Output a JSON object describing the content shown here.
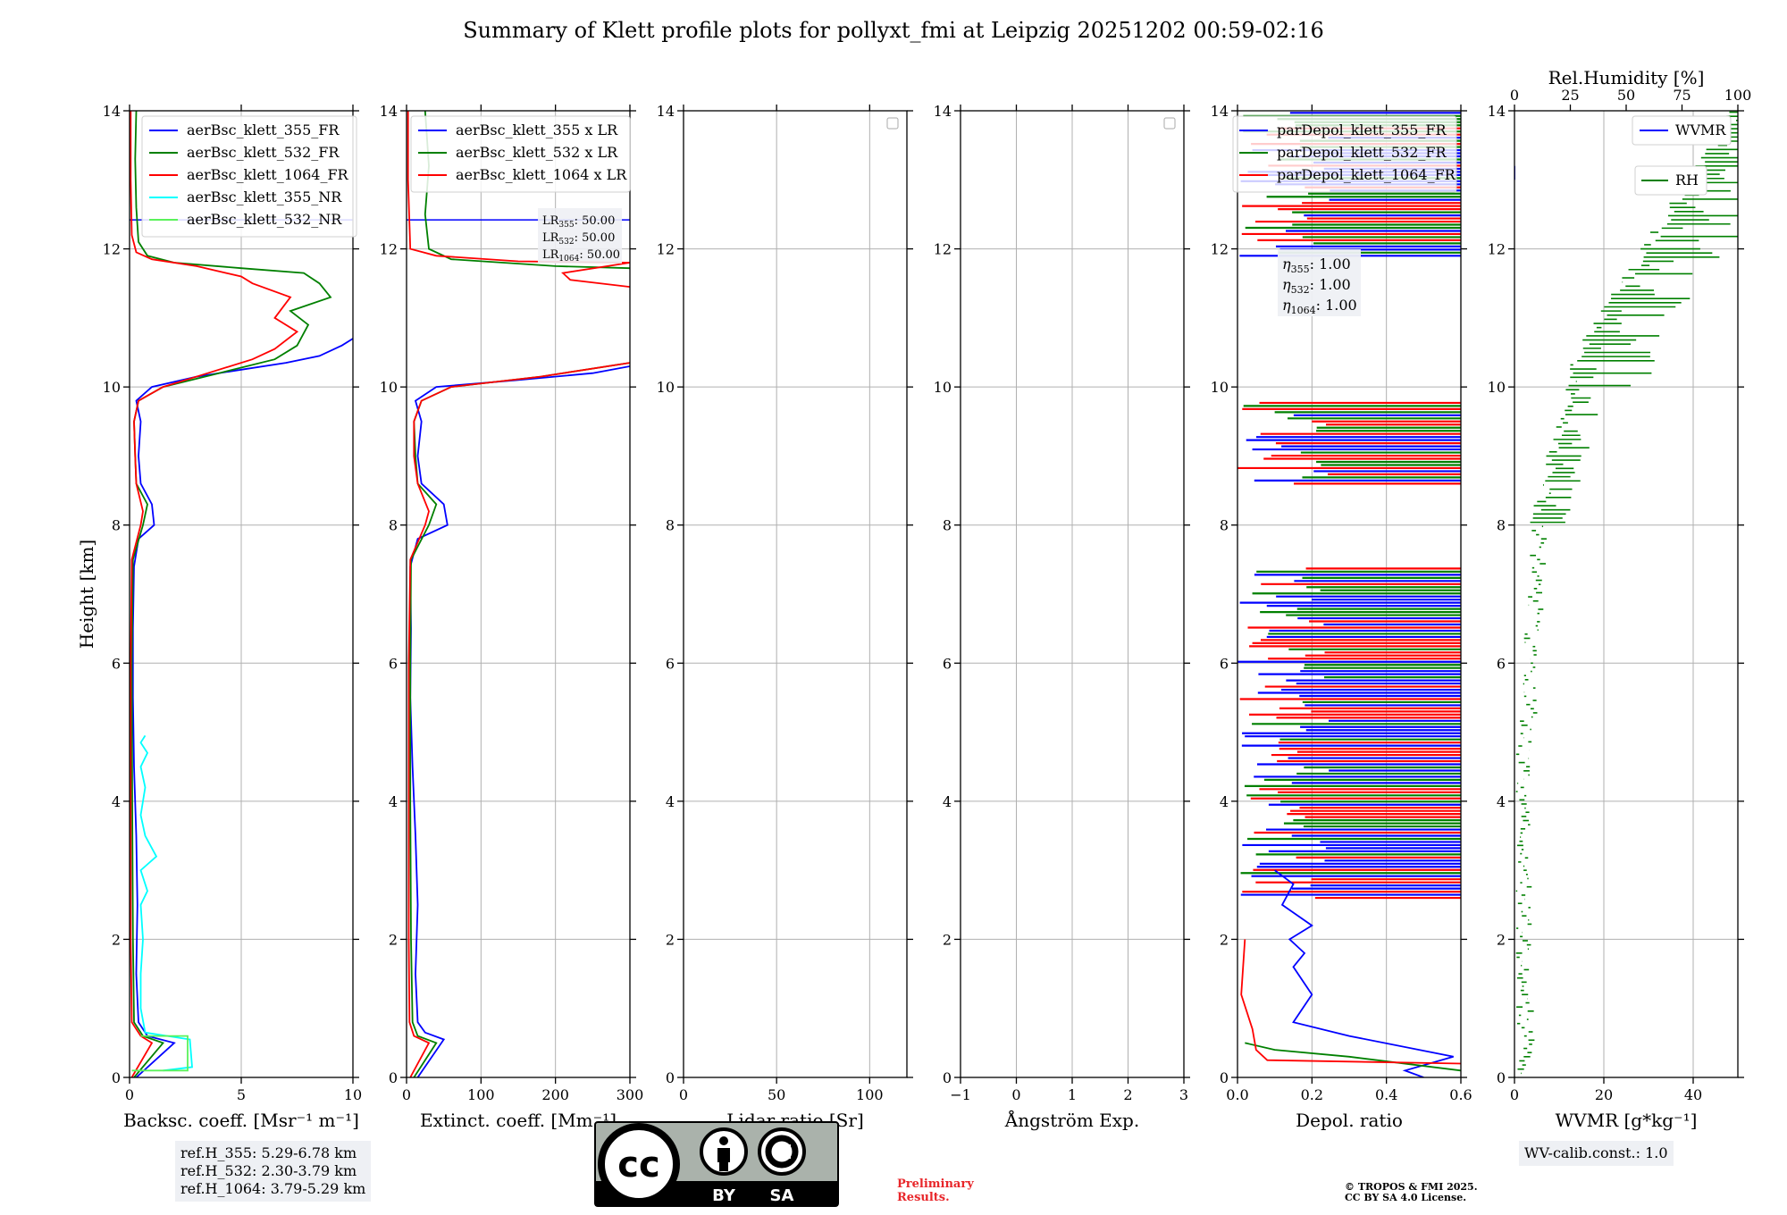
{
  "figure": {
    "title": "Summary of Klett profile plots for pollyxt_fmi at Leipzig 20251202 00:59-02:16",
    "ylabel": "Height [km]",
    "preliminary": [
      "Preliminary",
      "Results."
    ],
    "copyright": [
      "© TROPOS & FMI 2025.",
      "CC BY SA 4.0 License."
    ],
    "license_badge": {
      "by": "BY",
      "sa": "SA",
      "cc": "cc"
    },
    "colors": {
      "blue": "#0000ff",
      "green": "#008000",
      "red": "#ff0000",
      "cyan": "#00ffff",
      "lightgreen": "#5af25a"
    }
  },
  "chart_data": [
    {
      "type": "line",
      "id": "bsc",
      "xlabel": "Backsc. coeff. [Msr⁻¹ m⁻¹]",
      "ylabel": "Height [km]",
      "xlim": [
        0,
        10
      ],
      "ylim": [
        0,
        14
      ],
      "xticks": [
        0,
        5,
        10
      ],
      "yticks": [
        0,
        2,
        4,
        6,
        8,
        10,
        12,
        14
      ],
      "grid": true,
      "legend_position": "top-right",
      "hline": {
        "y": 12.42,
        "color": "#0000ff"
      },
      "series": [
        {
          "name": "aerBsc_klett_355_FR",
          "color": "#0000ff",
          "points": [
            [
              0.3,
              0
            ],
            [
              2.0,
              0.5
            ],
            [
              0.8,
              0.6
            ],
            [
              0.4,
              0.8
            ],
            [
              0.3,
              1.5
            ],
            [
              0.35,
              2.5
            ],
            [
              0.3,
              3.5
            ],
            [
              0.2,
              4.5
            ],
            [
              0.15,
              5.5
            ],
            [
              0.15,
              6.5
            ],
            [
              0.2,
              7.4
            ],
            [
              0.4,
              7.8
            ],
            [
              1.1,
              8.0
            ],
            [
              1.0,
              8.3
            ],
            [
              0.5,
              8.6
            ],
            [
              0.4,
              9.0
            ],
            [
              0.5,
              9.5
            ],
            [
              0.3,
              9.8
            ],
            [
              1.0,
              10.0
            ],
            [
              3.0,
              10.15
            ],
            [
              5.0,
              10.25
            ],
            [
              7.0,
              10.35
            ],
            [
              8.5,
              10.45
            ],
            [
              9.5,
              10.6
            ],
            [
              10,
              10.7
            ]
          ]
        },
        {
          "name": "aerBsc_klett_532_FR",
          "color": "#008000",
          "points": [
            [
              0.2,
              0
            ],
            [
              1.5,
              0.5
            ],
            [
              0.6,
              0.6
            ],
            [
              0.2,
              0.8
            ],
            [
              0.15,
              2
            ],
            [
              0.12,
              4
            ],
            [
              0.1,
              6
            ],
            [
              0.15,
              7.5
            ],
            [
              0.6,
              8.0
            ],
            [
              0.8,
              8.3
            ],
            [
              0.3,
              8.6
            ],
            [
              0.25,
              9.0
            ],
            [
              0.2,
              9.5
            ],
            [
              0.4,
              9.8
            ],
            [
              1.5,
              10.0
            ],
            [
              4.0,
              10.2
            ],
            [
              6.5,
              10.4
            ],
            [
              7.5,
              10.6
            ],
            [
              8.0,
              10.9
            ],
            [
              7.2,
              11.1
            ],
            [
              9.0,
              11.3
            ],
            [
              8.5,
              11.5
            ],
            [
              7.8,
              11.65
            ],
            [
              5.0,
              11.72
            ],
            [
              2.0,
              11.8
            ],
            [
              0.8,
              11.9
            ],
            [
              0.4,
              12.1
            ],
            [
              0.3,
              12.6
            ],
            [
              0.25,
              13.3
            ],
            [
              0.3,
              14
            ]
          ]
        },
        {
          "name": "aerBsc_klett_1064_FR",
          "color": "#ff0000",
          "points": [
            [
              0.1,
              0
            ],
            [
              1.0,
              0.5
            ],
            [
              0.5,
              0.6
            ],
            [
              0.1,
              0.8
            ],
            [
              0.05,
              2
            ],
            [
              0.05,
              4
            ],
            [
              0.05,
              6
            ],
            [
              0.1,
              7.5
            ],
            [
              0.5,
              8.0
            ],
            [
              0.6,
              8.2
            ],
            [
              0.3,
              8.6
            ],
            [
              0.25,
              9.0
            ],
            [
              0.2,
              9.5
            ],
            [
              0.4,
              9.8
            ],
            [
              1.5,
              10.0
            ],
            [
              3.5,
              10.2
            ],
            [
              5.5,
              10.4
            ],
            [
              6.5,
              10.55
            ],
            [
              7.5,
              10.8
            ],
            [
              6.5,
              11.0
            ],
            [
              7.2,
              11.3
            ],
            [
              5.5,
              11.5
            ],
            [
              5.0,
              11.6
            ],
            [
              3.0,
              11.75
            ],
            [
              1.0,
              11.85
            ],
            [
              0.3,
              11.95
            ],
            [
              0.1,
              12.2
            ],
            [
              0.05,
              13
            ],
            [
              0.05,
              14
            ]
          ]
        },
        {
          "name": "aerBsc_klett_355_NR",
          "color": "#00ffff",
          "points": [
            [
              1.5,
              0.1
            ],
            [
              2.8,
              0.15
            ],
            [
              2.7,
              0.55
            ],
            [
              0.7,
              0.65
            ],
            [
              0.5,
              1.0
            ],
            [
              0.5,
              1.5
            ],
            [
              0.6,
              2.0
            ],
            [
              0.5,
              2.5
            ],
            [
              0.8,
              2.7
            ],
            [
              0.5,
              3.0
            ],
            [
              1.2,
              3.2
            ],
            [
              0.7,
              3.5
            ],
            [
              0.5,
              3.8
            ],
            [
              0.7,
              4.2
            ],
            [
              0.5,
              4.5
            ],
            [
              0.8,
              4.7
            ],
            [
              0.5,
              4.85
            ],
            [
              0.7,
              4.95
            ]
          ]
        },
        {
          "name": "aerBsc_klett_532_NR",
          "color": "#5af25a",
          "points": [
            [
              0.1,
              0.1
            ],
            [
              2.6,
              0.1
            ],
            [
              2.6,
              0.6
            ],
            [
              0.5,
              0.6
            ]
          ]
        }
      ],
      "annotation": [
        "ref.H_355: 5.29-6.78 km",
        "ref.H_532: 2.30-3.79 km",
        "ref.H_1064: 3.79-5.29 km"
      ]
    },
    {
      "type": "line",
      "id": "ext",
      "xlabel": "Extinct. coeff. [Mm⁻¹]",
      "xlim": [
        0,
        300
      ],
      "ylim": [
        0,
        14
      ],
      "xticks": [
        0,
        100,
        200,
        300
      ],
      "yticks": [
        0,
        2,
        4,
        6,
        8,
        10,
        12,
        14
      ],
      "grid": true,
      "legend_position": "top-left",
      "hline": {
        "y": 12.42,
        "color": "#0000ff"
      },
      "series": [
        {
          "name": "aerBsc_klett_355 x LR",
          "color": "#0000ff",
          "points": [
            [
              15,
              0
            ],
            [
              50,
              0.55
            ],
            [
              25,
              0.65
            ],
            [
              15,
              0.8
            ],
            [
              12,
              1.5
            ],
            [
              15,
              2.5
            ],
            [
              12,
              3.5
            ],
            [
              8,
              4.5
            ],
            [
              5,
              5.5
            ],
            [
              6,
              6.5
            ],
            [
              5,
              7.4
            ],
            [
              15,
              7.8
            ],
            [
              55,
              8.0
            ],
            [
              50,
              8.3
            ],
            [
              20,
              8.6
            ],
            [
              15,
              9.0
            ],
            [
              20,
              9.5
            ],
            [
              12,
              9.8
            ],
            [
              40,
              10.0
            ],
            [
              150,
              10.1
            ],
            [
              250,
              10.2
            ],
            [
              300,
              10.3
            ]
          ]
        },
        {
          "name": "aerBsc_klett_532 x LR",
          "color": "#008000",
          "points": [
            [
              10,
              0
            ],
            [
              40,
              0.5
            ],
            [
              15,
              0.6
            ],
            [
              8,
              0.8
            ],
            [
              6,
              2
            ],
            [
              5,
              4
            ],
            [
              5,
              6
            ],
            [
              6,
              7.5
            ],
            [
              30,
              8.0
            ],
            [
              40,
              8.3
            ],
            [
              15,
              8.6
            ],
            [
              12,
              9.0
            ],
            [
              10,
              9.5
            ],
            [
              20,
              9.8
            ],
            [
              60,
              10.0
            ],
            [
              180,
              10.15
            ],
            [
              300,
              10.35
            ]
          ]
        },
        {
          "name": "aerBsc_klett_1064 x LR",
          "color": "#ff0000",
          "points": [
            [
              5,
              0
            ],
            [
              30,
              0.5
            ],
            [
              10,
              0.6
            ],
            [
              4,
              0.8
            ],
            [
              3,
              2
            ],
            [
              3,
              4
            ],
            [
              3,
              6
            ],
            [
              5,
              7.5
            ],
            [
              25,
              8.0
            ],
            [
              30,
              8.2
            ],
            [
              15,
              8.6
            ],
            [
              10,
              9.0
            ],
            [
              10,
              9.5
            ],
            [
              20,
              9.8
            ],
            [
              60,
              10.0
            ],
            [
              180,
              10.15
            ],
            [
              300,
              10.35
            ]
          ]
        }
      ],
      "extra_upper": [
        {
          "color": "#008000",
          "points": [
            [
              300,
              11.72
            ],
            [
              200,
              11.75
            ],
            [
              60,
              11.85
            ],
            [
              30,
              12.0
            ],
            [
              25,
              12.5
            ],
            [
              30,
              13.2
            ],
            [
              25,
              14
            ]
          ]
        },
        {
          "color": "#ff0000",
          "points": [
            [
              300,
              11.45
            ],
            [
              220,
              11.55
            ],
            [
              210,
              11.65
            ],
            [
              300,
              11.8
            ],
            [
              150,
              11.82
            ],
            [
              40,
              11.9
            ],
            [
              5,
              12.0
            ],
            [
              2,
              13
            ],
            [
              2,
              14
            ]
          ]
        }
      ],
      "annotation": [
        "LR355: 50.00",
        "LR532: 50.00",
        "LR1064: 50.00"
      ]
    },
    {
      "type": "line",
      "id": "lr",
      "xlabel": "Lidar ratio [Sr]",
      "xlim": [
        0,
        120
      ],
      "ylim": [
        0,
        14
      ],
      "xticks": [
        0,
        50,
        100
      ],
      "yticks": [
        0,
        2,
        4,
        6,
        8,
        10,
        12,
        14
      ],
      "grid": true,
      "series": []
    },
    {
      "type": "line",
      "id": "ang",
      "xlabel": "Ångström Exp.",
      "xlim": [
        -1,
        3
      ],
      "ylim": [
        0,
        14
      ],
      "xticks": [
        -1,
        0,
        1,
        2,
        3
      ],
      "yticks": [
        0,
        2,
        4,
        6,
        8,
        10,
        12,
        14
      ],
      "grid": true,
      "series": []
    },
    {
      "type": "line",
      "id": "depol",
      "xlabel": "Depol. ratio",
      "xlim": [
        0,
        0.6
      ],
      "ylim": [
        0,
        14
      ],
      "xticks": [
        0.0,
        0.2,
        0.4,
        0.6
      ],
      "xticklabels": [
        "0.0",
        "0.2",
        "0.4",
        "0.6"
      ],
      "yticks": [
        0,
        2,
        4,
        6,
        8,
        10,
        12,
        14
      ],
      "grid": true,
      "legend_position": "top-left",
      "series": [
        {
          "name": "parDepol_klett_355_FR",
          "color": "#0000ff",
          "points": [
            [
              0.5,
              0
            ],
            [
              0.45,
              0.1
            ],
            [
              0.58,
              0.3
            ],
            [
              0.3,
              0.6
            ],
            [
              0.15,
              0.8
            ],
            [
              0.2,
              1.2
            ],
            [
              0.15,
              1.6
            ],
            [
              0.18,
              1.8
            ],
            [
              0.14,
              2.0
            ],
            [
              0.2,
              2.2
            ],
            [
              0.12,
              2.5
            ],
            [
              0.15,
              2.8
            ],
            [
              0.1,
              3.0
            ]
          ]
        },
        {
          "name": "parDepol_klett_532_FR",
          "color": "#008000",
          "points": [
            [
              0.6,
              0.1
            ],
            [
              0.3,
              0.3
            ],
            [
              0.1,
              0.4
            ],
            [
              0.02,
              0.5
            ]
          ]
        },
        {
          "name": "parDepol_klett_1064_FR",
          "color": "#ff0000",
          "points": [
            [
              0.6,
              0.2
            ],
            [
              0.08,
              0.25
            ],
            [
              0.05,
              0.4
            ],
            [
              0.04,
              0.7
            ],
            [
              0.01,
              1.2
            ],
            [
              0.02,
              2.0
            ]
          ]
        }
      ],
      "noise_bands": [
        [
          2.6,
          7.4
        ],
        [
          8.6,
          9.8
        ],
        [
          11.9,
          14
        ]
      ],
      "annotation": [
        "η355: 1.00",
        "η532: 1.00",
        "η1064: 1.00"
      ]
    },
    {
      "type": "line",
      "id": "wv",
      "xlabel": "WVMR [g*kg⁻¹]",
      "top_xlabel": "Rel.Humidity [%]",
      "xlim": [
        0,
        50
      ],
      "ylim": [
        0,
        14
      ],
      "xticks": [
        0,
        20,
        40
      ],
      "top_xticks": [
        0,
        25,
        50,
        75,
        100
      ],
      "yticks": [
        0,
        2,
        4,
        6,
        8,
        10,
        12,
        14
      ],
      "grid": true,
      "series": [
        {
          "name": "WVMR",
          "color": "#0000ff",
          "points": [
            [
              0,
              13.0
            ],
            [
              0,
              13.1
            ],
            [
              0,
              13.2
            ]
          ]
        },
        {
          "name": "RH",
          "color": "#008000",
          "points": []
        }
      ],
      "annotation": [
        "WV-calib.const.: 1.0"
      ]
    }
  ],
  "annotations": {
    "ref_heights": [
      "ref.H_355: 5.29-6.78 km",
      "ref.H_532: 2.30-3.79 km",
      "ref.H_1064: 3.79-5.29 km"
    ],
    "wv_calib": "WV-calib.const.: 1.0"
  }
}
